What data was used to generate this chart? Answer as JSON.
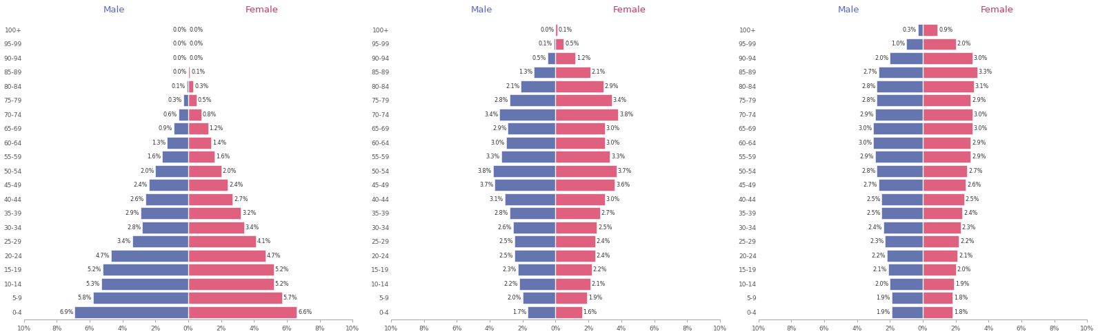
{
  "age_groups": [
    "0-4",
    "5-9",
    "10-14",
    "15-19",
    "20-24",
    "25-29",
    "30-34",
    "35-39",
    "40-44",
    "45-49",
    "50-54",
    "55-59",
    "60-64",
    "65-69",
    "70-74",
    "75-79",
    "80-84",
    "85-89",
    "90-94",
    "95-99",
    "100+"
  ],
  "chart1": {
    "male": [
      6.9,
      5.8,
      5.3,
      5.2,
      4.7,
      3.4,
      2.8,
      2.9,
      2.6,
      2.4,
      2.0,
      1.6,
      1.3,
      0.9,
      0.6,
      0.3,
      0.1,
      0.0,
      0.0,
      0.0,
      0.0
    ],
    "female": [
      6.6,
      5.7,
      5.2,
      5.2,
      4.7,
      4.1,
      3.4,
      3.2,
      2.7,
      2.4,
      2.0,
      1.6,
      1.4,
      1.2,
      0.8,
      0.5,
      0.3,
      0.1,
      0.0,
      0.0,
      0.0
    ]
  },
  "chart2": {
    "male": [
      1.7,
      2.0,
      2.2,
      2.3,
      2.5,
      2.5,
      2.6,
      2.8,
      3.1,
      3.7,
      3.8,
      3.3,
      3.0,
      2.9,
      3.4,
      2.8,
      2.1,
      1.3,
      0.5,
      0.1,
      0.0
    ],
    "female": [
      1.6,
      1.9,
      2.1,
      2.2,
      2.4,
      2.4,
      2.5,
      2.7,
      3.0,
      3.6,
      3.7,
      3.3,
      3.0,
      3.0,
      3.8,
      3.4,
      2.9,
      2.1,
      1.2,
      0.5,
      0.1
    ]
  },
  "chart3": {
    "male": [
      1.9,
      1.9,
      2.0,
      2.1,
      2.2,
      2.3,
      2.4,
      2.5,
      2.5,
      2.7,
      2.8,
      2.9,
      3.0,
      3.0,
      2.9,
      2.8,
      2.8,
      2.7,
      2.0,
      1.0,
      0.3
    ],
    "female": [
      1.8,
      1.8,
      1.9,
      2.0,
      2.1,
      2.2,
      2.3,
      2.4,
      2.5,
      2.6,
      2.7,
      2.9,
      2.9,
      3.0,
      3.0,
      2.9,
      3.1,
      3.3,
      3.0,
      2.0,
      0.9
    ]
  },
  "male_color": "#6475b0",
  "female_color": "#e06080",
  "bg_color": "#ffffff",
  "xlim": 10,
  "male_title_color": "#5566cc",
  "female_title_color": "#cc3366",
  "label_color": "#333333",
  "axis_label_color": "#555555",
  "bar_height": 0.82,
  "label_fontsize": 5.8,
  "tick_fontsize": 6.5,
  "title_fontsize": 9.5
}
